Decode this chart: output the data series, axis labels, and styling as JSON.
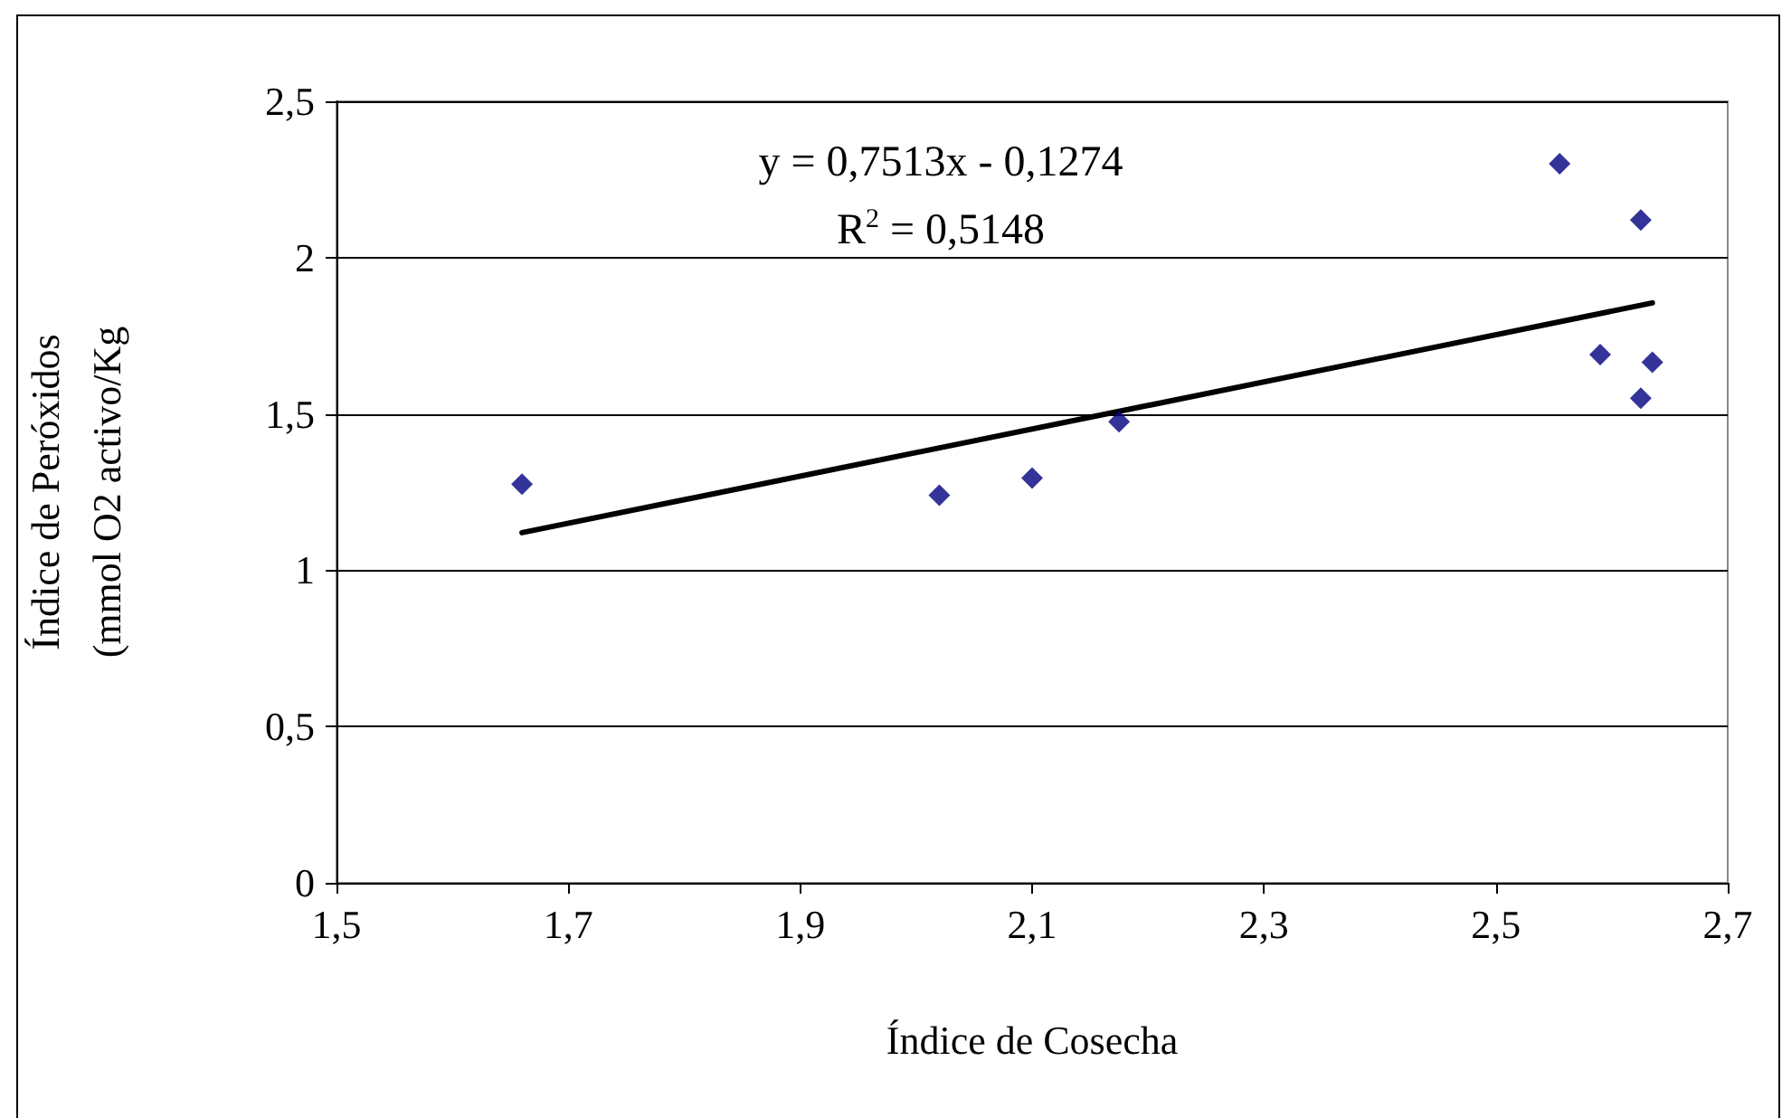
{
  "chart_data": {
    "type": "scatter",
    "xlabel": "Índice de Cosecha",
    "ylabel": "Índice de Peróxidos\n(mmol O2 activo/Kg",
    "annotations": [
      "y = 0,7513x - 0,1274",
      "R$^{2}$ = 0,5148"
    ],
    "series": [
      {
        "color": "#000080",
        "x": [
          1.66,
          2.02,
          2.1,
          2.175,
          2.555,
          2.625,
          2.59,
          2.635,
          2.625
        ],
        "values": [
          1.275,
          1.24,
          1.295,
          1.475,
          2.3,
          2.12,
          1.69,
          1.665,
          1.55
        ]
      },
      {
        "type": "line",
        "color": "#000000",
        "marker": "none",
        "x": [
          1.66,
          2.635
        ],
        "values": [
          1.12,
          1.855
        ]
      }
    ],
    "xlim": [
      1.5,
      2.7
    ],
    "xticks": [
      {
        "value": 1.5,
        "label": "1,5"
      },
      {
        "value": 1.7,
        "label": "1,7"
      },
      {
        "value": 1.9,
        "label": "1,9"
      },
      {
        "value": 2.1,
        "label": "2,1"
      },
      {
        "value": 2.3,
        "label": "2,3"
      },
      {
        "value": 2.5,
        "label": "2,5"
      },
      {
        "value": 2.7,
        "label": "2,7"
      }
    ],
    "ylim": [
      0,
      2.5
    ],
    "yticks": [
      0,
      {
        "value": 0.5,
        "label": "0,5"
      },
      1,
      {
        "value": 1.5,
        "label": "1,5"
      },
      2,
      {
        "value": 2.5,
        "label": "2,5"
      }
    ],
    "grid": "y",
    "marker": "diamond"
  }
}
